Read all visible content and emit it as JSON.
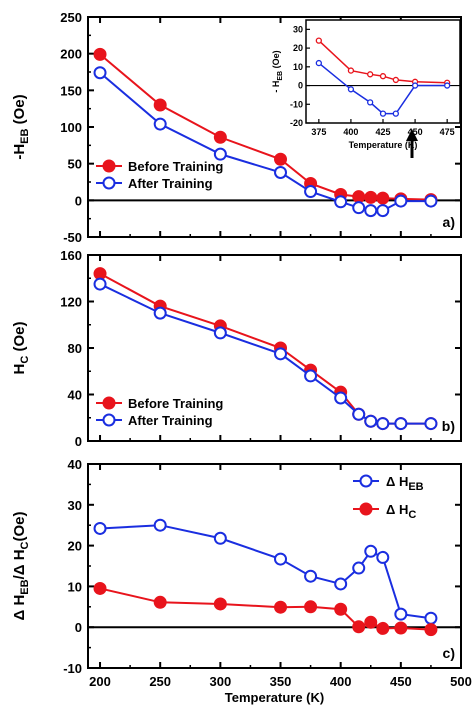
{
  "chart_data": [
    {
      "type": "line",
      "panel_label": "a)",
      "ylabel": "-H",
      "ylabel_sub": "EB",
      "ylabel_unit": " (Oe)",
      "xlim": [
        190,
        500
      ],
      "ylim": [
        -50,
        250
      ],
      "yticks": [
        -50,
        0,
        50,
        100,
        150,
        200,
        250
      ],
      "zero_line": true,
      "legend_position": "middle-left",
      "series": [
        {
          "name": "Before Training",
          "color": "#e8141c",
          "marker": "filled-circle",
          "x": [
            200,
            250,
            300,
            350,
            375,
            400,
            415,
            425,
            435,
            450,
            475
          ],
          "y": [
            199,
            130,
            86,
            56,
            23,
            8,
            5,
            4,
            3,
            2,
            1
          ]
        },
        {
          "name": "After Training",
          "color": "#1a2ee0",
          "marker": "open-circle",
          "x": [
            200,
            250,
            300,
            350,
            375,
            400,
            415,
            425,
            435,
            450,
            475
          ],
          "y": [
            174,
            104,
            63,
            38,
            12,
            -2,
            -10,
            -14,
            -14,
            -1,
            -1
          ]
        }
      ],
      "inset": {
        "xlabel": "Temperature (K)",
        "ylabel": "- H",
        "ylabel_sub": "EB",
        "ylabel_unit": " (Oe)",
        "xlim": [
          365,
          485
        ],
        "ylim": [
          -20,
          35
        ],
        "xticks": [
          375,
          400,
          425,
          450,
          475
        ],
        "yticks": [
          -20,
          -10,
          0,
          10,
          20,
          30
        ],
        "series": [
          {
            "color": "#e8141c",
            "marker": "open-circle",
            "x": [
              375,
              400,
              415,
              425,
              435,
              450,
              475
            ],
            "y": [
              24,
              8,
              6,
              5,
              3,
              2,
              1.5
            ]
          },
          {
            "color": "#1a2ee0",
            "marker": "open-circle",
            "x": [
              375,
              400,
              415,
              425,
              435,
              450,
              475
            ],
            "y": [
              12,
              -2,
              -9,
              -15,
              -15,
              0,
              0
            ]
          }
        ]
      }
    },
    {
      "type": "line",
      "panel_label": "b)",
      "ylabel": "H",
      "ylabel_sub": "C",
      "ylabel_unit": " (Oe)",
      "xlim": [
        190,
        500
      ],
      "ylim": [
        0,
        160
      ],
      "yticks": [
        0,
        40,
        80,
        120,
        160
      ],
      "legend_position": "bottom-left",
      "series": [
        {
          "name": "Before Training",
          "color": "#e8141c",
          "marker": "filled-circle",
          "x": [
            200,
            250,
            300,
            350,
            375,
            400,
            415,
            425,
            435,
            450,
            475
          ],
          "y": [
            144,
            116,
            99,
            80,
            61,
            42,
            23,
            17,
            15,
            15,
            15
          ]
        },
        {
          "name": "After Training",
          "color": "#1a2ee0",
          "marker": "open-circle",
          "x": [
            200,
            250,
            300,
            350,
            375,
            400,
            415,
            425,
            435,
            450,
            475
          ],
          "y": [
            135,
            110,
            93,
            75,
            56,
            37,
            23,
            17,
            15,
            15,
            15
          ]
        }
      ]
    },
    {
      "type": "line",
      "panel_label": "c)",
      "ylabel": "Δ H",
      "ylabel_sub": "EB",
      "ylabel_mid": "/Δ H",
      "ylabel_sub2": "C",
      "ylabel_unit": "(Oe)",
      "xlabel": "Temperature (K)",
      "xlim": [
        190,
        500
      ],
      "ylim": [
        -10,
        40
      ],
      "xticks": [
        200,
        250,
        300,
        350,
        400,
        450,
        500
      ],
      "yticks": [
        -10,
        0,
        10,
        20,
        30,
        40
      ],
      "zero_line": true,
      "legend_position": "top-right",
      "series": [
        {
          "name": "Δ H",
          "name_sub": "EB",
          "color": "#1a2ee0",
          "marker": "open-circle",
          "x": [
            200,
            250,
            300,
            350,
            375,
            400,
            415,
            425,
            435,
            450,
            475
          ],
          "y": [
            24.2,
            25,
            21.8,
            16.7,
            12.5,
            10.6,
            14.5,
            18.6,
            17.1,
            3.2,
            2.2
          ]
        },
        {
          "name": "Δ H",
          "name_sub": "C",
          "color": "#e8141c",
          "marker": "filled-circle",
          "x": [
            200,
            250,
            300,
            350,
            375,
            400,
            415,
            425,
            435,
            450,
            475
          ],
          "y": [
            9.5,
            6.1,
            5.7,
            4.9,
            5,
            4.4,
            0.1,
            1.2,
            -0.3,
            -0.2,
            -0.6
          ]
        }
      ]
    }
  ]
}
